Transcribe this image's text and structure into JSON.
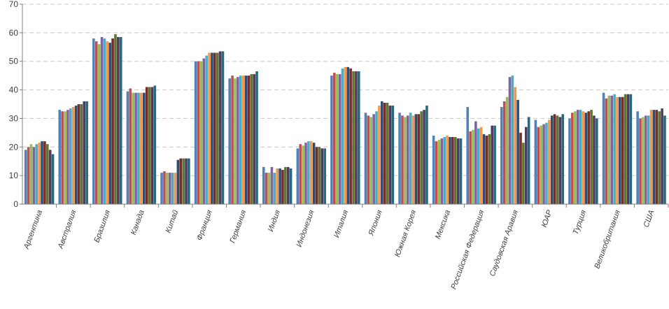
{
  "chart_data": {
    "type": "bar",
    "title": "",
    "xlabel": "",
    "ylabel": "",
    "ylim": [
      0,
      70
    ],
    "yticks": [
      0,
      10,
      20,
      30,
      40,
      50,
      60,
      70
    ],
    "grid": true,
    "legend": "none",
    "categories": [
      "Аргентина",
      "Австралия",
      "Бразилия",
      "Канада",
      "Китай",
      "Франция",
      "Германия",
      "Индия",
      "Индонезия",
      "Италия",
      "Япония",
      "Южная Корея",
      "Мексика",
      "Российская Федерация",
      "Саудовская Аравия",
      "ЮАР",
      "Турция",
      "Великобритания",
      "США"
    ],
    "colors": [
      "#4f81bd",
      "#c0504d",
      "#9bbb59",
      "#8064a2",
      "#4bacc6",
      "#f79646",
      "#2c4d75",
      "#772c2a",
      "#5f7530",
      "#4d3b62",
      "#276a7c",
      "#b65708",
      "#95b3d7",
      "#d99694",
      "#c3d69b",
      "#b3a2c7",
      "#93cddd",
      "#fac090",
      "#a6bddb"
    ],
    "values": [
      [
        19,
        20,
        21,
        20,
        21,
        21.5,
        22,
        22,
        21,
        19,
        17.5
      ],
      [
        33,
        32.5,
        32.5,
        33,
        33.5,
        34,
        34.5,
        35,
        35,
        36,
        36
      ],
      [
        58,
        57,
        56,
        58.5,
        58,
        57,
        56.5,
        58,
        59.5,
        58.5,
        58.5
      ],
      [
        39.5,
        40.5,
        39,
        39,
        39,
        39,
        39,
        41,
        41,
        41,
        41.5
      ],
      [
        11,
        11.5,
        11,
        11,
        11,
        11,
        15.5,
        16,
        16,
        16,
        16
      ],
      [
        50,
        50,
        50,
        51,
        52,
        53,
        53,
        53,
        53,
        53.5,
        53.5
      ],
      [
        44,
        45,
        44,
        44.5,
        45,
        45,
        45,
        45,
        45.5,
        45.5,
        46.5
      ],
      [
        13,
        11,
        11,
        13,
        11,
        12.5,
        12.5,
        12,
        13,
        13,
        12.5
      ],
      [
        19.5,
        21,
        20.5,
        21.5,
        22,
        22,
        21.5,
        20,
        20,
        19.5,
        19.5
      ],
      [
        45,
        46,
        45.5,
        45.5,
        47.5,
        48,
        48,
        47.5,
        46.5,
        46.5,
        46.5
      ],
      [
        32,
        31,
        30.5,
        31.5,
        32.5,
        34.5,
        36,
        35.5,
        35.5,
        34.5,
        34.5
      ],
      [
        32,
        31,
        30.5,
        31,
        32,
        31,
        31.5,
        31.5,
        32.5,
        33,
        34.5
      ],
      [
        24,
        22,
        22.5,
        23,
        23.5,
        24,
        23.5,
        23.5,
        23.5,
        23,
        23
      ],
      [
        34,
        25.5,
        26,
        29,
        26.5,
        27,
        24.5,
        24,
        24.5,
        27.5,
        27.5
      ],
      [
        34,
        36,
        37.5,
        44.5,
        45,
        41,
        36.5,
        25,
        21.5,
        27,
        30.5
      ],
      [
        29.5,
        27,
        27.5,
        28,
        28.5,
        29.5,
        31,
        31.5,
        31,
        30.5,
        31.5
      ],
      [
        30,
        32,
        32.5,
        33,
        33,
        32.5,
        32,
        32.5,
        33,
        31,
        30
      ],
      [
        39,
        37,
        38,
        38,
        38.5,
        37.5,
        37.5,
        37.5,
        38.5,
        38.5,
        38.5
      ],
      [
        32.5,
        30,
        30.5,
        31,
        31,
        33,
        33,
        33,
        32.5,
        33.5,
        31
      ]
    ]
  }
}
